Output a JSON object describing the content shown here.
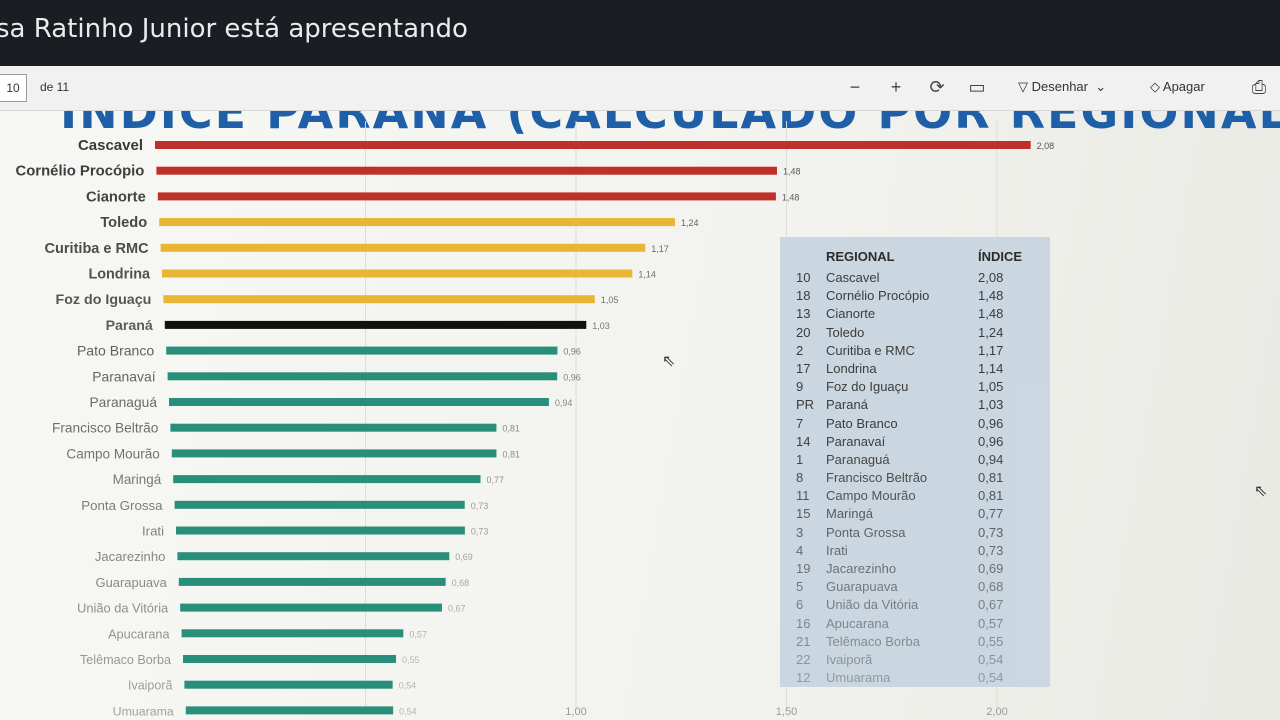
{
  "presenter_banner": "sa Ratinho Junior está apresentando",
  "toolbar": {
    "page_current": "10",
    "page_total": "de 11",
    "draw_label": "Desenhar",
    "erase_label": "Apagar"
  },
  "slide_title": "ÍNDICE PARANÁ (CALCULADO POR REGIONAL DE",
  "colors": {
    "red": "#c0302b",
    "yellow": "#e8b634",
    "black": "#111111",
    "green": "#2a8f7a"
  },
  "chart_data": {
    "type": "bar",
    "orientation": "horizontal",
    "categories": [
      "Cascavel",
      "Cornélio Procópio",
      "Cianorte",
      "Toledo",
      "Curitiba e RMC",
      "Londrina",
      "Foz do Iguaçu",
      "Paraná",
      "Pato Branco",
      "Paranavaí",
      "Paranaguá",
      "Francisco Beltrão",
      "Campo Mourão",
      "Maringá",
      "Ponta Grossa",
      "Irati",
      "Jacarezinho",
      "Guarapuava",
      "União da Vitória",
      "Apucarana",
      "Telêmaco Borba",
      "Ivaiporã",
      "Umuarama"
    ],
    "values": [
      2.08,
      1.48,
      1.48,
      1.24,
      1.17,
      1.14,
      1.05,
      1.03,
      0.96,
      0.96,
      0.94,
      0.81,
      0.81,
      0.77,
      0.73,
      0.73,
      0.69,
      0.68,
      0.67,
      0.57,
      0.55,
      0.54,
      0.54
    ],
    "value_labels": [
      "2,08",
      "1,48",
      "1,48",
      "1,24",
      "1,17",
      "1,14",
      "1,05",
      "1,03",
      "0,96",
      "0,96",
      "0,94",
      "0,81",
      "0,81",
      "0,77",
      "0,73",
      "0,73",
      "0,69",
      "0,68",
      "0,67",
      "0,57",
      "0,55",
      "0,54",
      "0,54"
    ],
    "bar_colors": [
      "red",
      "red",
      "red",
      "yellow",
      "yellow",
      "yellow",
      "yellow",
      "black",
      "green",
      "green",
      "green",
      "green",
      "green",
      "green",
      "green",
      "green",
      "green",
      "green",
      "green",
      "green",
      "green",
      "green",
      "green"
    ],
    "x_ticks": [
      "1,00",
      "1,50",
      "2,00"
    ],
    "xlim": [
      0,
      2.1
    ],
    "grid": true
  },
  "table": {
    "headers": [
      "REGIONAL",
      "ÍNDICE"
    ],
    "rows": [
      [
        "10",
        "Cascavel",
        "2,08"
      ],
      [
        "18",
        "Cornélio Procópio",
        "1,48"
      ],
      [
        "13",
        "Cianorte",
        "1,48"
      ],
      [
        "20",
        "Toledo",
        "1,24"
      ],
      [
        "2",
        "Curitiba e RMC",
        "1,17"
      ],
      [
        "17",
        "Londrina",
        "1,14"
      ],
      [
        "9",
        "Foz do Iguaçu",
        "1,05"
      ],
      [
        "PR",
        "Paraná",
        "1,03"
      ],
      [
        "7",
        "Pato Branco",
        "0,96"
      ],
      [
        "14",
        "Paranavaí",
        "0,96"
      ],
      [
        "1",
        "Paranaguá",
        "0,94"
      ],
      [
        "8",
        "Francisco Beltrão",
        "0,81"
      ],
      [
        "11",
        "Campo Mourão",
        "0,81"
      ],
      [
        "15",
        "Maringá",
        "0,77"
      ],
      [
        "3",
        "Ponta Grossa",
        "0,73"
      ],
      [
        "4",
        "Irati",
        "0,73"
      ],
      [
        "19",
        "Jacarezinho",
        "0,69"
      ],
      [
        "5",
        "Guarapuava",
        "0,68"
      ],
      [
        "6",
        "União da Vitória",
        "0,67"
      ],
      [
        "16",
        "Apucarana",
        "0,57"
      ],
      [
        "21",
        "Telêmaco Borba",
        "0,55"
      ],
      [
        "22",
        "Ivaiporã",
        "0,54"
      ],
      [
        "12",
        "Umuarama",
        "0,54"
      ]
    ]
  }
}
